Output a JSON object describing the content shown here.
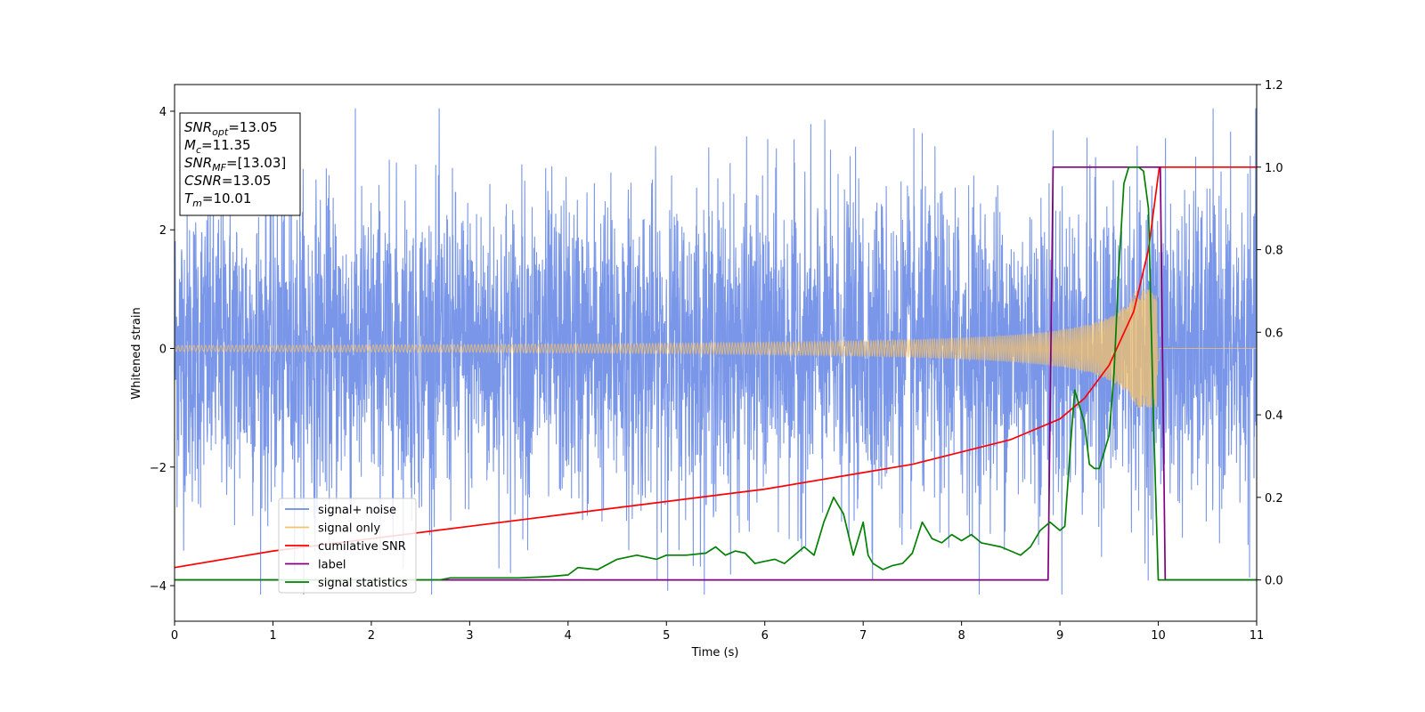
{
  "chart_data": {
    "type": "line",
    "xlabel": "Time (s)",
    "ylabel": "Whitened strain",
    "xlim": [
      0,
      11
    ],
    "ylim": [
      -4.6,
      4.45
    ],
    "y2lim": [
      -0.1,
      1.2
    ],
    "x_ticks": [
      0,
      1,
      2,
      3,
      4,
      5,
      6,
      7,
      8,
      9,
      10,
      11
    ],
    "y_ticks": [
      -4,
      -2,
      0,
      2,
      4
    ],
    "y_tick_labels": [
      "−4",
      "−2",
      "0",
      "2",
      "4"
    ],
    "y2_ticks": [
      0.0,
      0.2,
      0.4,
      0.6,
      0.8,
      1.0,
      1.2
    ],
    "y2_tick_labels": [
      "0.0",
      "0.2",
      "0.4",
      "0.6",
      "0.8",
      "1.0",
      "1.2"
    ],
    "legend_position": "lower-left",
    "annotation": {
      "lines": [
        {
          "sym": "SNR",
          "sub": "opt",
          "val": "=13.05"
        },
        {
          "sym": "M",
          "sub": "c",
          "val": "=11.35"
        },
        {
          "sym": "SNR",
          "sub": "MF",
          "val": "=[13.03]"
        },
        {
          "sym": "CSNR",
          "sub": "",
          "val": "=13.05"
        },
        {
          "sym": "T",
          "sub": "m",
          "val": "=10.01"
        }
      ]
    },
    "series": [
      {
        "name": "signal+ noise",
        "axis": "left",
        "color": "#6a8be6",
        "description_range": [
          -4.15,
          4.05
        ],
        "typical_amplitude": 1.3
      },
      {
        "name": "signal only",
        "axis": "left",
        "color": "#f5c26b",
        "merger_time": 10.01,
        "peak_amplitude": 1.0
      },
      {
        "name": "cumilative SNR",
        "axis": "right",
        "color": "#ff0000",
        "x": [
          0,
          1,
          2,
          3,
          4,
          5,
          6,
          7,
          7.5,
          8,
          8.5,
          9,
          9.25,
          9.5,
          9.75,
          9.9,
          10.01,
          11
        ],
        "y": [
          0.03,
          0.07,
          0.1,
          0.13,
          0.16,
          0.19,
          0.22,
          0.26,
          0.28,
          0.31,
          0.34,
          0.39,
          0.44,
          0.52,
          0.65,
          0.8,
          1.0,
          1.0
        ]
      },
      {
        "name": "label",
        "axis": "right",
        "color": "#800080",
        "x": [
          0,
          8.88,
          8.93,
          10.02,
          10.07,
          11
        ],
        "y": [
          0.0,
          0.0,
          1.0,
          1.0,
          0.0,
          0.0
        ]
      },
      {
        "name": "signal statistics",
        "axis": "right",
        "color": "#008000",
        "x": [
          0,
          2.7,
          2.8,
          3.0,
          3.5,
          3.8,
          4.0,
          4.1,
          4.3,
          4.5,
          4.7,
          4.9,
          5.0,
          5.2,
          5.4,
          5.5,
          5.6,
          5.7,
          5.8,
          5.9,
          6.0,
          6.1,
          6.2,
          6.3,
          6.4,
          6.5,
          6.6,
          6.7,
          6.8,
          6.9,
          6.95,
          7.0,
          7.05,
          7.1,
          7.2,
          7.3,
          7.4,
          7.5,
          7.6,
          7.7,
          7.8,
          7.9,
          8.0,
          8.1,
          8.2,
          8.3,
          8.4,
          8.5,
          8.6,
          8.7,
          8.8,
          8.9,
          9.0,
          9.05,
          9.1,
          9.15,
          9.2,
          9.25,
          9.3,
          9.35,
          9.4,
          9.5,
          9.55,
          9.6,
          9.65,
          9.7,
          9.75,
          9.8,
          9.85,
          9.9,
          9.95,
          10.0,
          10.05,
          10.1,
          11
        ],
        "y": [
          0.0,
          0.0,
          0.005,
          0.005,
          0.005,
          0.008,
          0.012,
          0.03,
          0.025,
          0.05,
          0.06,
          0.05,
          0.06,
          0.06,
          0.065,
          0.08,
          0.06,
          0.07,
          0.065,
          0.04,
          0.045,
          0.05,
          0.04,
          0.06,
          0.08,
          0.06,
          0.14,
          0.2,
          0.16,
          0.06,
          0.1,
          0.14,
          0.06,
          0.04,
          0.025,
          0.035,
          0.04,
          0.065,
          0.14,
          0.1,
          0.09,
          0.11,
          0.095,
          0.11,
          0.09,
          0.085,
          0.08,
          0.07,
          0.06,
          0.08,
          0.12,
          0.14,
          0.12,
          0.13,
          0.3,
          0.46,
          0.42,
          0.38,
          0.28,
          0.27,
          0.27,
          0.35,
          0.5,
          0.76,
          0.96,
          1.0,
          1.0,
          1.0,
          0.99,
          0.9,
          0.4,
          0.0,
          0.0,
          0.0,
          0.0
        ]
      }
    ]
  }
}
